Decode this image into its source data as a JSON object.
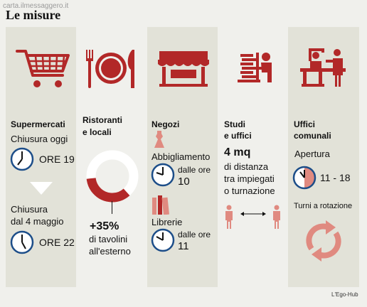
{
  "watermark": "carta.ilmessaggero.it",
  "title": "Le misure",
  "credit": "L'Ego-Hub",
  "supermercati": {
    "heading": "Supermercati",
    "closing_today": "Chiusura oggi",
    "time_today": "ORE 19",
    "closing_may_line1": "Chiusura",
    "closing_may_line2": "dal 4 maggio",
    "time_may": "ORE 22"
  },
  "ristoranti": {
    "heading_line1": "Ristoranti",
    "heading_line2": "e locali",
    "increase": "+35%",
    "increase_note_line1": "di tavolini",
    "increase_note_line2": "all'esterno",
    "ring_fill_fraction": 0.35
  },
  "negozi": {
    "heading": "Negozi",
    "abbigliamento": "Abbigliamento",
    "abbigliamento_from": "dalle ore",
    "abbigliamento_hour": "10",
    "librerie": "Librerie",
    "librerie_from": "dalle ore",
    "librerie_hour": "11"
  },
  "studi": {
    "heading_line1": "Studi",
    "heading_line2": "e uffici",
    "distance": "4 mq",
    "note_line1": "di distanza",
    "note_line2": "tra impiegati",
    "note_line3": "o turnazione"
  },
  "uffici": {
    "heading_line1": "Uffici",
    "heading_line2": "comunali",
    "opening": "Apertura",
    "hours": "11 - 18",
    "rotation": "Turni a rotazione"
  },
  "colors": {
    "accent": "#b22828",
    "accent_light": "#e08a80",
    "clock_blue": "#1d4e89"
  }
}
